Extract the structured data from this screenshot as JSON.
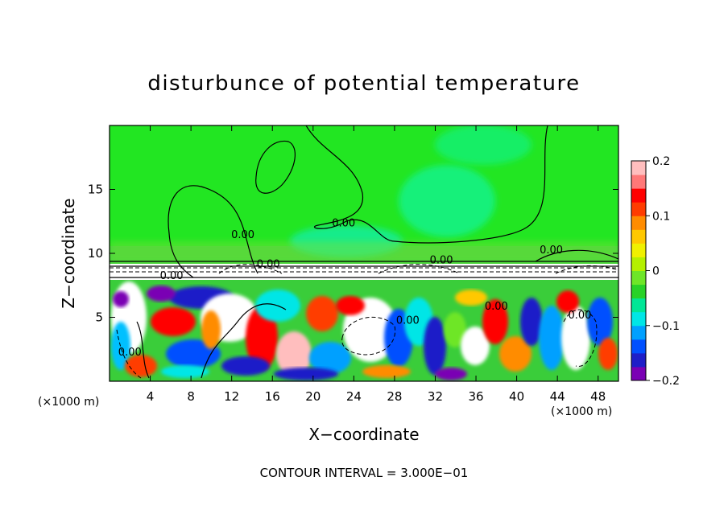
{
  "chart_data": {
    "type": "heatmap",
    "title": "disturbunce of potential temperature",
    "xlabel": "X−coordinate",
    "ylabel": "Z−coordinate",
    "x_unit_left": "(×1000 m)",
    "x_unit_right": "(×1000 m)",
    "footer": "CONTOUR INTERVAL = 3.000E−01",
    "xlim": [
      0,
      50
    ],
    "ylim": [
      0,
      20
    ],
    "x_ticks": [
      4,
      8,
      12,
      16,
      20,
      24,
      28,
      32,
      36,
      40,
      44,
      48
    ],
    "x_tick_labels": [
      "4",
      "8",
      "12",
      "16",
      "20",
      "24",
      "28",
      "32",
      "36",
      "40",
      "44",
      "48"
    ],
    "y_ticks": [
      5,
      10,
      15
    ],
    "y_tick_labels": [
      "5",
      "10",
      "15"
    ],
    "colorbar": {
      "range": [
        -0.2,
        0.2
      ],
      "ticks": [
        0.2,
        0.1,
        0,
        -0.1,
        -0.2
      ],
      "tick_labels": [
        "0.2",
        "0.1",
        "0",
        "−0.1",
        "−0.2"
      ],
      "colors": [
        "#7a00b4",
        "#1e1ec8",
        "#0050ff",
        "#00a0ff",
        "#00e6e6",
        "#00e696",
        "#28d228",
        "#6ee628",
        "#b4f000",
        "#f0f000",
        "#ffc800",
        "#ff8c00",
        "#ff3c00",
        "#ff0000",
        "#ff7878",
        "#ffbebe"
      ]
    },
    "contour_labels": [
      {
        "text": "0.00",
        "x": 13.1,
        "z": 11.2
      },
      {
        "text": "0.00",
        "x": 23.0,
        "z": 12.1
      },
      {
        "text": "0.00",
        "x": 15.6,
        "z": 8.9
      },
      {
        "text": "0.00",
        "x": 6.1,
        "z": 8.0
      },
      {
        "text": "0.00",
        "x": 32.6,
        "z": 9.2
      },
      {
        "text": "0.00",
        "x": 43.4,
        "z": 10.0
      },
      {
        "text": "0.00",
        "x": 29.3,
        "z": 4.5
      },
      {
        "text": "0.00",
        "x": 2.0,
        "z": 2.0
      },
      {
        "text": "0.00",
        "x": 38.0,
        "z": 5.6
      },
      {
        "text": "0.00",
        "x": 46.2,
        "z": 4.9
      }
    ]
  }
}
